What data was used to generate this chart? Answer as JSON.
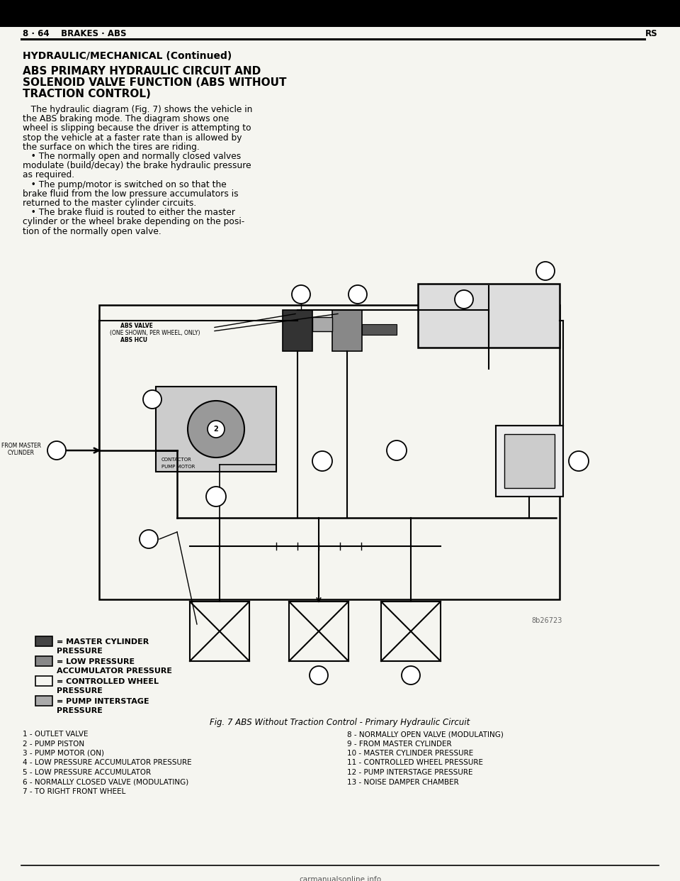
{
  "bg_color": "#f5f5f0",
  "text_color": "#000000",
  "page_header_left": "8 · 64    BRAKES · ABS",
  "page_header_right": "RS",
  "section_title": "HYDRAULIC/MECHANICAL (Continued)",
  "subsection_title_lines": [
    "ABS PRIMARY HYDRAULIC CIRCUIT AND",
    "SOLENOID VALVE FUNCTION (ABS WITHOUT",
    "TRACTION CONTROL)"
  ],
  "body_paragraphs": [
    "   The hydraulic diagram (Fig. 7) shows the vehicle in\nthe ABS braking mode. The diagram shows one\nwheel is slipping because the driver is attempting to\nstop the vehicle at a faster rate than is allowed by\nthe surface on which the tires are riding.",
    "   • The normally open and normally closed valves\nmodulate (build/decay) the brake hydraulic pressure\nas required.",
    "   • The pump/motor is switched on so that the\nbrake fluid from the low pressure accumulators is\nreturned to the master cylinder circuits.",
    "   • The brake fluid is routed to either the master\ncylinder or the wheel brake depending on the posi-\ntion of the normally open valve."
  ],
  "legend_colors": [
    "#444444",
    "#888888",
    "#f5f5f0",
    "#aaaaaa"
  ],
  "legend_labels": [
    [
      "= MASTER CYLINDER",
      "PRESSURE"
    ],
    [
      "= LOW PRESSURE",
      "ACCUMULATOR PRESSURE"
    ],
    [
      "= CONTROLLED WHEEL",
      "PRESSURE"
    ],
    [
      "= PUMP INTERSTAGE",
      "PRESSURE"
    ]
  ],
  "fig_caption": "Fig. 7 ABS Without Traction Control - Primary Hydraulic Circuit",
  "ref_number": "8b26723",
  "numbered_items_left": [
    "1 - OUTLET VALVE",
    "2 - PUMP PISTON",
    "3 - PUMP MOTOR (ON)",
    "4 - LOW PRESSURE ACCUMULATOR PRESSURE",
    "5 - LOW PRESSURE ACCUMULATOR",
    "6 - NORMALLY CLOSED VALVE (MODULATING)",
    "7 - TO RIGHT FRONT WHEEL"
  ],
  "numbered_items_right": [
    "8 - NORMALLY OPEN VALVE (MODULATING)",
    "9 - FROM MASTER CYLINDER",
    "10 - MASTER CYLINDER PRESSURE",
    "11 - CONTROLLED WHEEL PRESSURE",
    "12 - PUMP INTERSTAGE PRESSURE",
    "13 - NOISE DAMPER CHAMBER"
  ],
  "footer_text": "carmanualsonline.info"
}
